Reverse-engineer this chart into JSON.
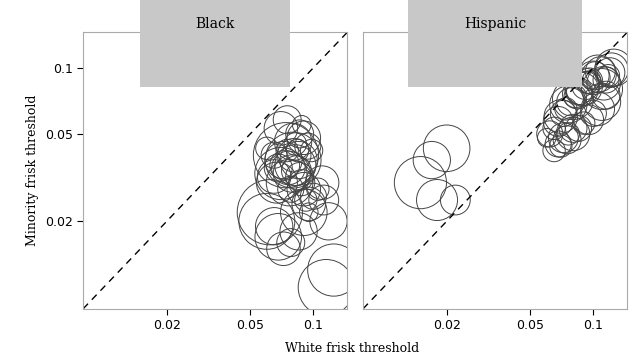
{
  "title_black": "Black",
  "title_hispanic": "Hispanic",
  "xlabel": "White frisk threshold",
  "ylabel": "Minority frisk threshold",
  "xlim": [
    0.008,
    0.145
  ],
  "ylim": [
    0.008,
    0.145
  ],
  "xticks": [
    0.02,
    0.05,
    0.1
  ],
  "yticks": [
    0.02,
    0.05,
    0.1
  ],
  "panel_header_color": "#c8c8c8",
  "background_color": "#ffffff",
  "circle_edge_color": "#444444",
  "black_x": [
    0.065,
    0.067,
    0.068,
    0.07,
    0.072,
    0.073,
    0.074,
    0.075,
    0.076,
    0.077,
    0.078,
    0.079,
    0.08,
    0.081,
    0.082,
    0.083,
    0.084,
    0.085,
    0.086,
    0.088,
    0.09,
    0.092,
    0.095,
    0.06,
    0.062,
    0.065,
    0.068,
    0.072,
    0.078,
    0.085,
    0.09,
    0.095,
    0.1,
    0.105,
    0.112,
    0.118,
    0.125,
    0.082,
    0.086,
    0.09,
    0.094,
    0.098,
    0.088,
    0.075,
    0.07,
    0.08,
    0.065,
    0.06,
    0.11,
    0.115
  ],
  "black_y": [
    0.032,
    0.03,
    0.035,
    0.033,
    0.038,
    0.036,
    0.04,
    0.042,
    0.035,
    0.03,
    0.028,
    0.033,
    0.038,
    0.04,
    0.036,
    0.034,
    0.042,
    0.038,
    0.032,
    0.03,
    0.028,
    0.025,
    0.022,
    0.02,
    0.022,
    0.019,
    0.017,
    0.015,
    0.016,
    0.018,
    0.022,
    0.024,
    0.026,
    0.028,
    0.025,
    0.02,
    0.012,
    0.045,
    0.05,
    0.048,
    0.044,
    0.042,
    0.055,
    0.058,
    0.053,
    0.046,
    0.04,
    0.043,
    0.03,
    0.01
  ],
  "black_s": [
    18,
    22,
    15,
    28,
    20,
    16,
    35,
    12,
    18,
    25,
    14,
    20,
    30,
    18,
    22,
    16,
    12,
    20,
    15,
    14,
    18,
    12,
    10,
    30,
    35,
    20,
    25,
    18,
    15,
    20,
    25,
    18,
    14,
    12,
    16,
    20,
    28,
    12,
    15,
    18,
    14,
    12,
    10,
    15,
    18,
    20,
    14,
    12,
    18,
    30
  ],
  "hispanic_x": [
    0.06,
    0.062,
    0.065,
    0.068,
    0.07,
    0.072,
    0.074,
    0.076,
    0.078,
    0.08,
    0.082,
    0.084,
    0.086,
    0.088,
    0.09,
    0.092,
    0.094,
    0.096,
    0.098,
    0.1,
    0.102,
    0.105,
    0.108,
    0.11,
    0.112,
    0.115,
    0.118,
    0.12,
    0.122,
    0.125,
    0.07,
    0.075,
    0.08,
    0.085,
    0.09,
    0.095,
    0.1,
    0.105,
    0.11,
    0.115,
    0.065,
    0.068,
    0.072,
    0.076,
    0.08,
    0.02,
    0.017,
    0.015,
    0.018,
    0.022
  ],
  "hispanic_y": [
    0.048,
    0.05,
    0.053,
    0.057,
    0.06,
    0.062,
    0.065,
    0.068,
    0.07,
    0.072,
    0.074,
    0.076,
    0.078,
    0.08,
    0.082,
    0.083,
    0.086,
    0.087,
    0.088,
    0.09,
    0.092,
    0.094,
    0.096,
    0.08,
    0.085,
    0.088,
    0.092,
    0.095,
    0.098,
    0.1,
    0.044,
    0.047,
    0.05,
    0.053,
    0.056,
    0.058,
    0.062,
    0.065,
    0.07,
    0.075,
    0.042,
    0.045,
    0.048,
    0.05,
    0.053,
    0.043,
    0.038,
    0.03,
    0.025,
    0.025
  ],
  "hispanic_s": [
    10,
    14,
    12,
    16,
    18,
    14,
    12,
    20,
    15,
    22,
    12,
    16,
    14,
    18,
    20,
    15,
    12,
    14,
    10,
    18,
    15,
    20,
    16,
    22,
    18,
    14,
    12,
    16,
    18,
    20,
    12,
    15,
    18,
    14,
    12,
    16,
    14,
    18,
    20,
    15,
    12,
    14,
    16,
    12,
    15,
    25,
    20,
    28,
    22,
    16
  ]
}
